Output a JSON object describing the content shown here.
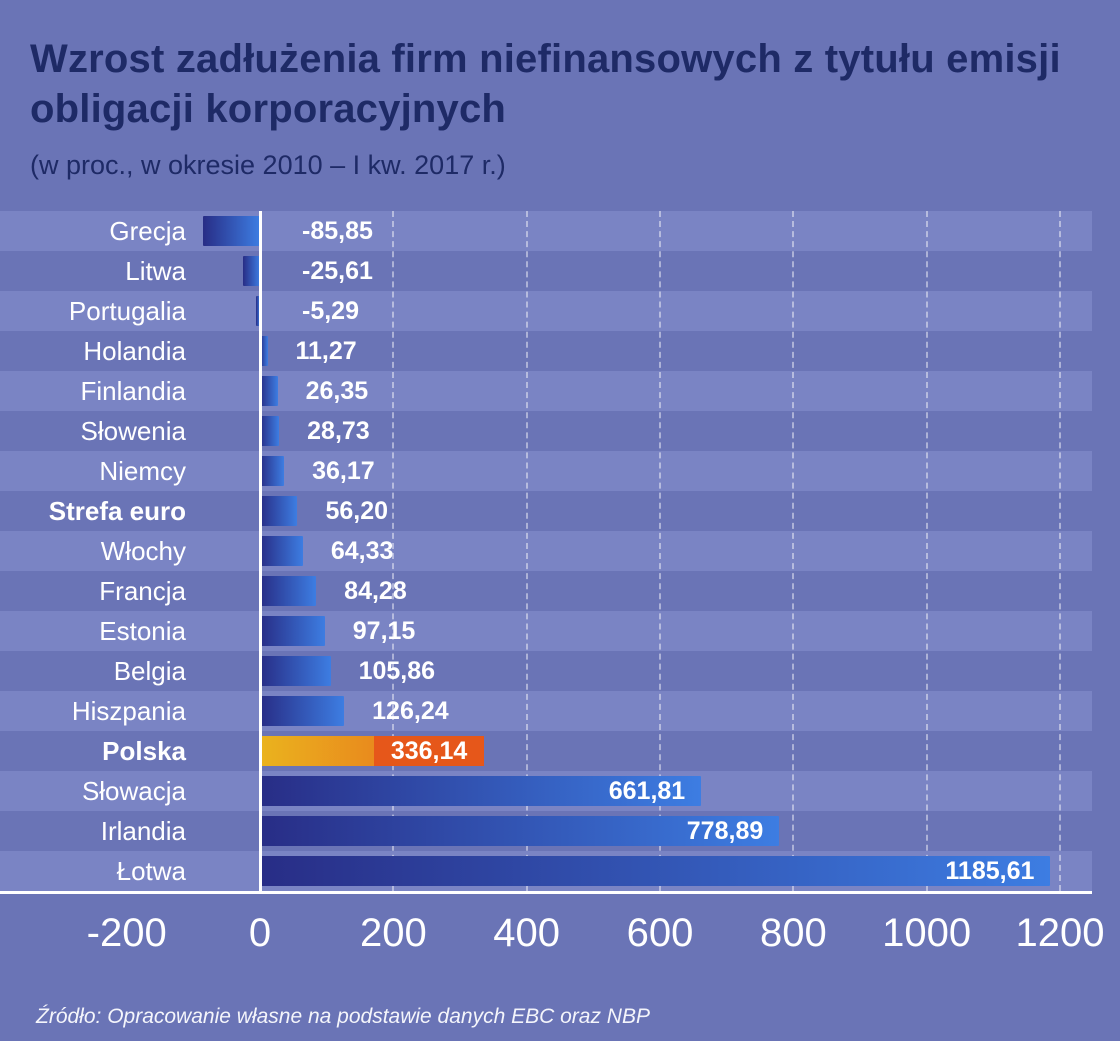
{
  "chart": {
    "title": "Wzrost zadłużenia firm niefinansowych z tytułu emisji obligacji korporacyjnych",
    "subtitle": "(w proc., w okresie 2010 – I kw. 2017 r.)",
    "source": "Źródło: Opracowanie własne na podstawie danych EBC oraz NBP"
  },
  "chart_data": {
    "type": "bar",
    "orientation": "horizontal",
    "unit": "percent",
    "title": "Wzrost zadłużenia firm niefinansowych z tytułu emisji obligacji korporacyjnych",
    "subtitle": "(w proc., w okresie 2010 – I kw. 2017 r.)",
    "categories": [
      "Grecja",
      "Litwa",
      "Portugalia",
      "Holandia",
      "Finlandia",
      "Słowenia",
      "Niemcy",
      "Strefa euro",
      "Włochy",
      "Francja",
      "Estonia",
      "Belgia",
      "Hiszpania",
      "Polska",
      "Słowacja",
      "Irlandia",
      "Łotwa"
    ],
    "values": [
      -85.85,
      -25.61,
      -5.29,
      11.27,
      26.35,
      28.73,
      36.17,
      56.2,
      64.33,
      84.28,
      97.15,
      105.86,
      126.24,
      336.14,
      661.81,
      778.89,
      1185.61
    ],
    "value_labels": [
      "-85,85",
      "-25,61",
      "-5,29",
      "11,27",
      "26,35",
      "28,73",
      "36,17",
      "56,20",
      "64,33",
      "84,28",
      "97,15",
      "105,86",
      "126,24",
      "336,14",
      "661,81",
      "778,89",
      "1185,61"
    ],
    "bold_categories": [
      "Strefa euro",
      "Polska"
    ],
    "highlight_category": "Polska",
    "inside_label_categories": [
      "Polska",
      "Słowacja",
      "Irlandia",
      "Łotwa"
    ],
    "x_ticks": [
      -200,
      0,
      200,
      400,
      600,
      800,
      1000,
      1200
    ],
    "x_tick_labels": [
      "-200",
      "0",
      "200",
      "400",
      "600",
      "800",
      "1000",
      "1200"
    ],
    "xlim": [
      -200,
      1250
    ],
    "grid": "dashed-vertical",
    "gridline_values": [
      200,
      400,
      600,
      800,
      1000,
      1200
    ],
    "legend": "none",
    "colors": {
      "background": "#6a74b6",
      "row_stripe": "#7a84c4",
      "bar_gradient_start": "#282d86",
      "bar_gradient_end": "#3d7de2",
      "highlight_gradient_start": "#eab31e",
      "highlight_gradient_end": "#e8641c",
      "highlight_label_box": "#e6571a",
      "title_color": "#1e2a66",
      "text_color": "#ffffff"
    }
  }
}
